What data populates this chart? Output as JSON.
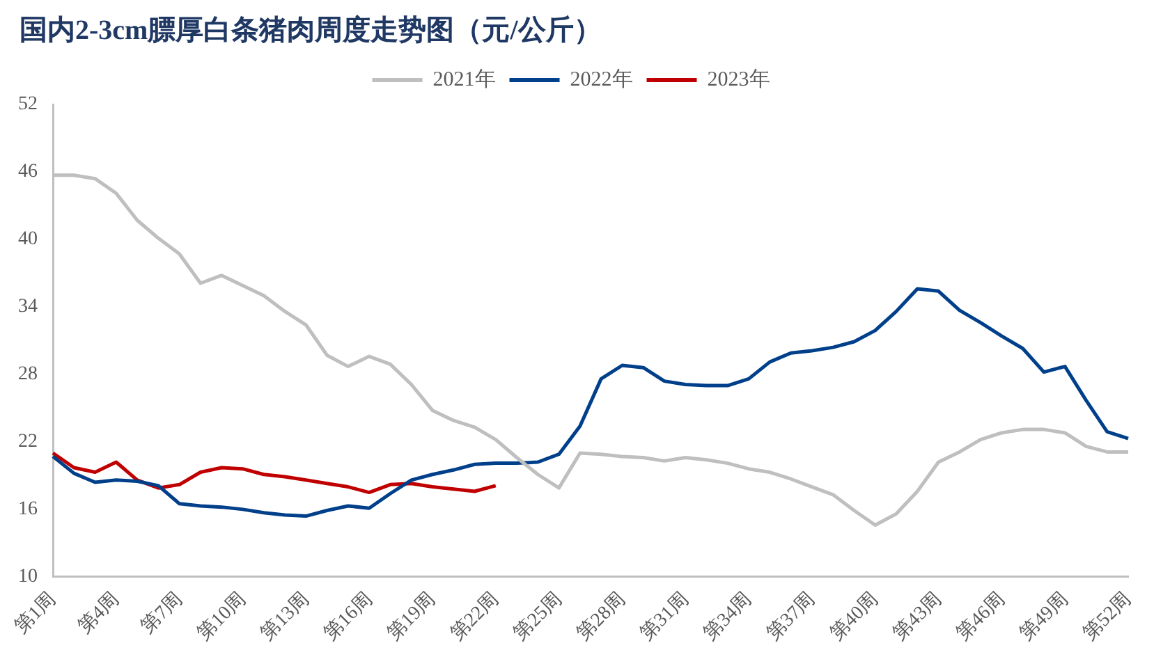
{
  "chart_data": {
    "type": "line",
    "title": "国内2-3cm膘厚白条猪肉周度走势图（元/公斤）",
    "categories": [
      "第1周",
      null,
      null,
      "第4周",
      null,
      null,
      "第7周",
      null,
      null,
      "第10周",
      null,
      null,
      "第13周",
      null,
      null,
      "第16周",
      null,
      null,
      "第19周",
      null,
      null,
      "第22周",
      null,
      null,
      "第25周",
      null,
      null,
      "第28周",
      null,
      null,
      "第31周",
      null,
      null,
      "第34周",
      null,
      null,
      "第37周",
      null,
      null,
      "第40周",
      null,
      null,
      "第43周",
      null,
      null,
      "第46周",
      null,
      null,
      "第49周",
      null,
      null,
      "第52周"
    ],
    "series": [
      {
        "name": "2021年",
        "color": "#bfbfbf",
        "values": [
          45.7,
          45.7,
          45.4,
          44.1,
          41.7,
          40.1,
          38.7,
          36.1,
          36.8,
          35.9,
          35.0,
          33.6,
          32.4,
          29.7,
          28.7,
          29.6,
          28.9,
          27.1,
          24.8,
          23.9,
          23.3,
          22.2,
          20.6,
          19.1,
          17.9,
          21.0,
          20.9,
          20.7,
          20.6,
          20.3,
          20.6,
          20.4,
          20.1,
          19.6,
          19.3,
          18.7,
          18.0,
          17.3,
          15.9,
          14.6,
          15.6,
          17.6,
          20.2,
          21.1,
          22.2,
          22.8,
          23.1,
          23.1,
          22.8,
          21.6,
          21.1,
          21.1
        ]
      },
      {
        "name": "2022年",
        "color": "#003f8a",
        "values": [
          20.7,
          19.2,
          18.4,
          18.6,
          18.5,
          18.1,
          16.5,
          16.3,
          16.2,
          16.0,
          15.7,
          15.5,
          15.4,
          15.9,
          16.3,
          16.1,
          17.4,
          18.6,
          19.1,
          19.5,
          20.0,
          20.1,
          20.1,
          20.2,
          20.9,
          23.4,
          27.6,
          28.8,
          28.6,
          27.4,
          27.1,
          27.0,
          27.0,
          27.6,
          29.1,
          29.9,
          30.1,
          30.4,
          30.9,
          31.9,
          33.6,
          35.6,
          35.4,
          33.7,
          32.6,
          31.4,
          30.3,
          28.2,
          28.7,
          25.7,
          22.9,
          22.3
        ]
      },
      {
        "name": "2023年",
        "color": "#c00000",
        "values": [
          21.0,
          19.7,
          19.3,
          20.2,
          18.6,
          17.9,
          18.2,
          19.3,
          19.7,
          19.6,
          19.1,
          18.9,
          18.6,
          18.3,
          18.0,
          17.5,
          18.2,
          18.3,
          18.0,
          17.8,
          17.6,
          18.1,
          null,
          null,
          null,
          null,
          null,
          null,
          null,
          null,
          null,
          null,
          null,
          null,
          null,
          null,
          null,
          null,
          null,
          null,
          null,
          null,
          null,
          null,
          null,
          null,
          null,
          null,
          null,
          null,
          null,
          null
        ]
      }
    ],
    "ylim": [
      10,
      52
    ],
    "yticks": [
      10,
      16,
      22,
      28,
      34,
      40,
      46,
      52
    ],
    "grid": false,
    "legend": "top",
    "marker": "none",
    "line_style": "solid"
  }
}
